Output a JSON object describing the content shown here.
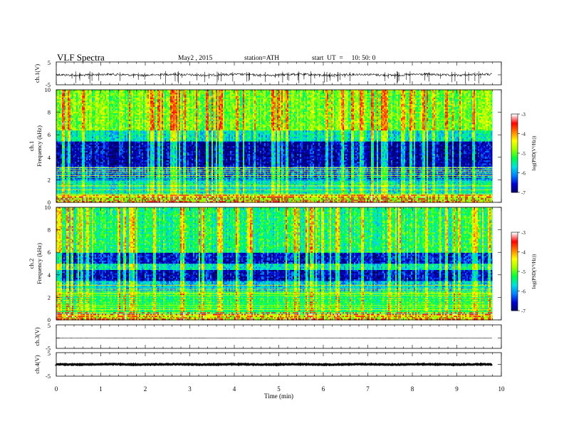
{
  "header": {
    "title": "VLF  Spectra",
    "date": "May2 , 2015",
    "station": "station=ATH",
    "start": "start  UT  =     10: 50: 0"
  },
  "chart_data": [
    {
      "type": "line",
      "panel": "ch1-waveform",
      "ylabel": "ch.1(V)",
      "ylim": [
        -5,
        5
      ],
      "yticks": [
        "5",
        "-5"
      ],
      "description_values": {
        "baseline": 0.0,
        "typical_noise_amplitude": 0.5
      }
    },
    {
      "type": "heatmap",
      "panel": "ch1-spectrogram",
      "ylabel": "ch.1\nFrequency  (kHz)",
      "ylim": [
        0,
        10
      ],
      "yticks": [
        "0",
        "2",
        "4",
        "6",
        "8",
        "10"
      ],
      "xlim": [
        0,
        10
      ],
      "data_end_min": 9.8,
      "colorbar": {
        "label": "log(PSD(V²/Hz))",
        "range": [
          -7,
          -3
        ],
        "ticks": [
          "-3",
          "-4",
          "-5",
          "-6",
          "-7"
        ]
      },
      "bands": [
        {
          "f_from": 0.0,
          "f_to": 0.8,
          "logpsd": -4.5
        },
        {
          "f_from": 0.8,
          "f_to": 2.0,
          "logpsd": -5.6
        },
        {
          "f_from": 2.0,
          "f_to": 3.2,
          "logpsd": -6.2
        },
        {
          "f_from": 3.2,
          "f_to": 5.5,
          "logpsd": -6.7
        },
        {
          "f_from": 5.5,
          "f_to": 6.5,
          "logpsd": -5.6
        },
        {
          "f_from": 6.5,
          "f_to": 10.0,
          "logpsd": -4.9
        }
      ]
    },
    {
      "type": "heatmap",
      "panel": "ch2-spectrogram",
      "ylabel": "ch.2\nFrequency  (kHz)",
      "ylim": [
        0,
        10
      ],
      "yticks": [
        "0",
        "2",
        "4",
        "6",
        "8",
        "10"
      ],
      "xlim": [
        0,
        10
      ],
      "data_end_min": 9.8,
      "colorbar": {
        "label": "log(PSD(V²/Hz))",
        "range": [
          -7,
          -3
        ],
        "ticks": [
          "-3",
          "-4",
          "-5",
          "-6",
          "-7"
        ]
      },
      "bands": [
        {
          "f_from": 0.0,
          "f_to": 0.8,
          "logpsd": -4.6
        },
        {
          "f_from": 0.8,
          "f_to": 2.5,
          "logpsd": -5.2
        },
        {
          "f_from": 2.5,
          "f_to": 3.5,
          "logpsd": -5.8
        },
        {
          "f_from": 3.5,
          "f_to": 4.5,
          "logpsd": -6.6
        },
        {
          "f_from": 4.5,
          "f_to": 5.0,
          "logpsd": -5.6
        },
        {
          "f_from": 5.0,
          "f_to": 6.0,
          "logpsd": -6.5
        },
        {
          "f_from": 6.0,
          "f_to": 10.0,
          "logpsd": -5.3
        }
      ]
    },
    {
      "type": "line",
      "panel": "ch3-waveform",
      "ylabel": "ch.3(V)",
      "ylim": [
        -5,
        5
      ],
      "yticks": [
        "5",
        "-5"
      ],
      "description_values": {
        "baseline": 0.0,
        "typical_noise_amplitude": 0.02
      }
    },
    {
      "type": "line",
      "panel": "ch4-waveform",
      "ylabel": "ch.4(V)",
      "ylim": [
        -5,
        5
      ],
      "yticks": [
        "5",
        "-5"
      ],
      "description_values": {
        "baseline": 0.0,
        "typical_noise_amplitude": 0.15
      }
    }
  ],
  "x_axis": {
    "label": "Time  (min)",
    "ticks": [
      "0",
      "1",
      "2",
      "3",
      "4",
      "5",
      "6",
      "7",
      "8",
      "9",
      "10"
    ],
    "range": [
      0,
      10
    ]
  },
  "colors": {
    "colormap": [
      "#000060",
      "#0000d0",
      "#0080ff",
      "#00e0e0",
      "#00ff40",
      "#a0ff00",
      "#ffff00",
      "#ff8000",
      "#ff0000",
      "#ffffff"
    ]
  }
}
